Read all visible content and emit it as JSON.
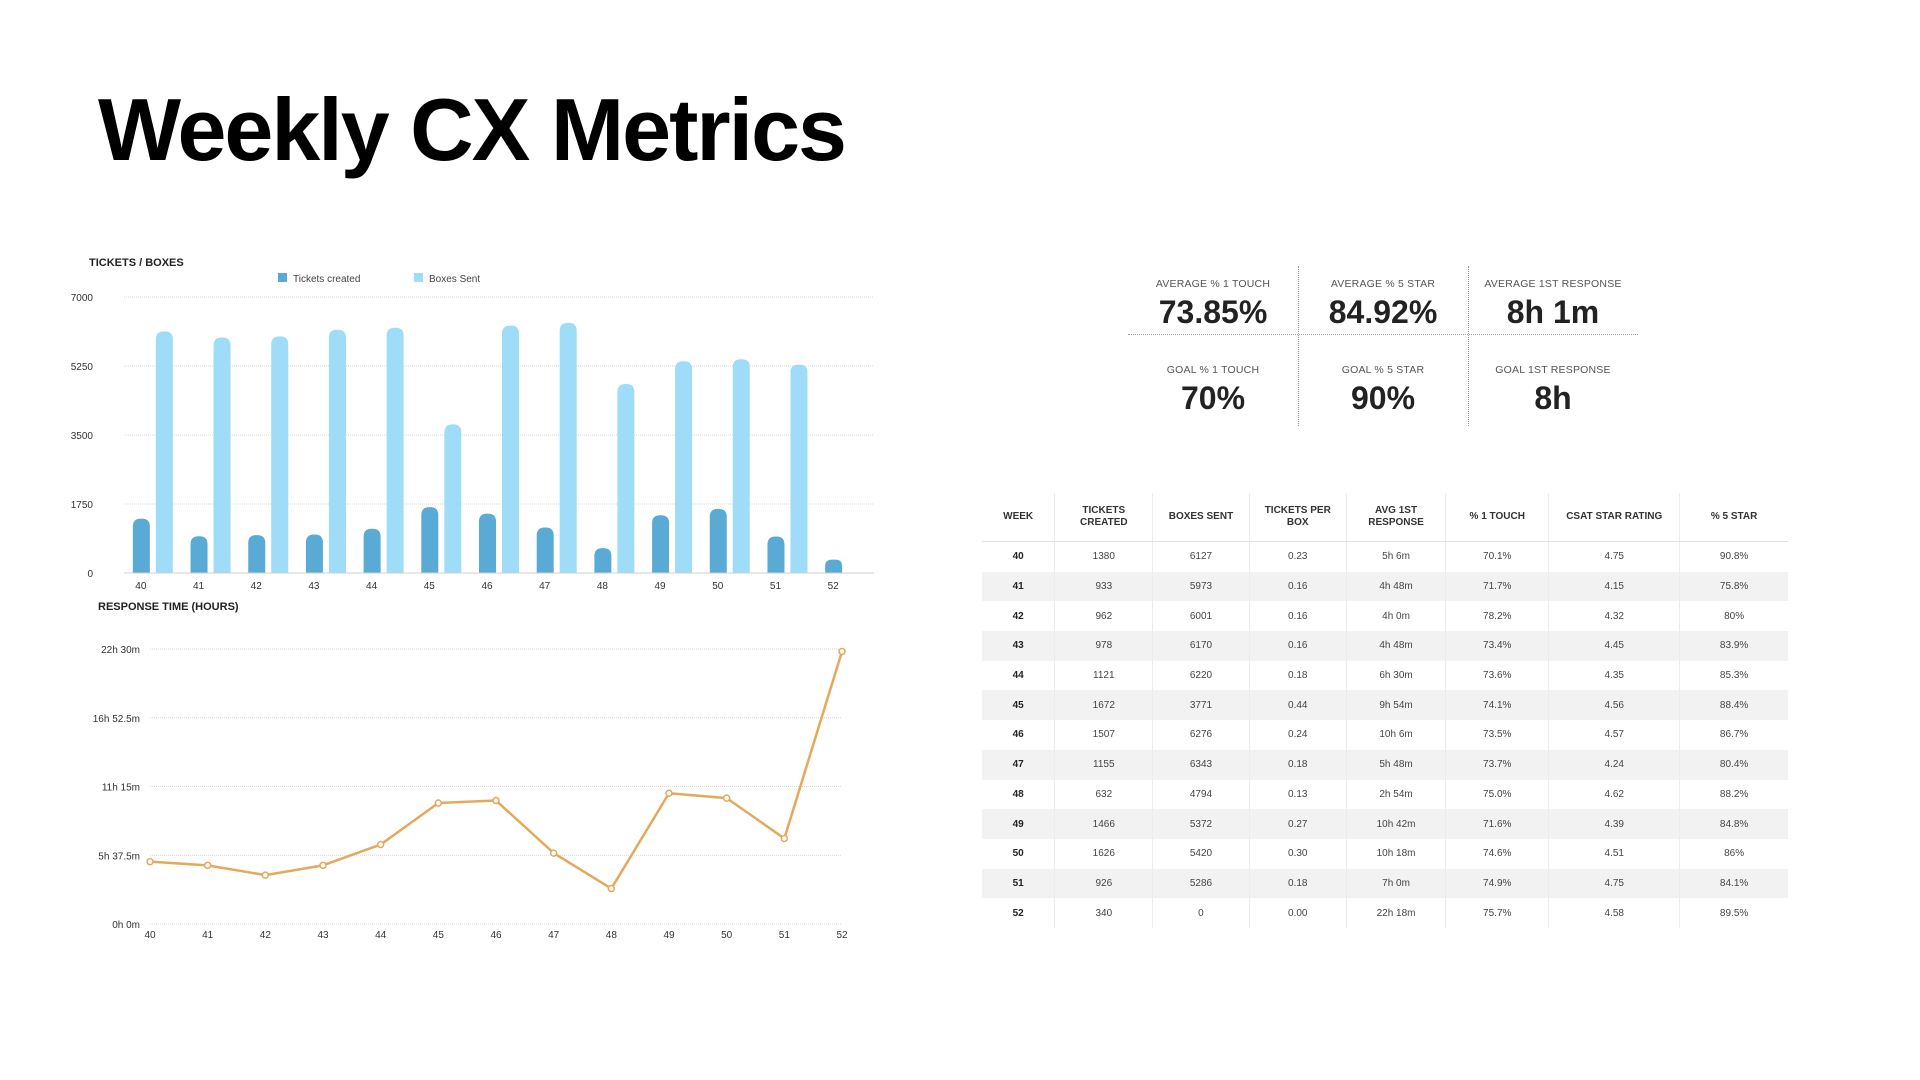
{
  "title": "Weekly CX Metrics",
  "colors": {
    "tickets": "#5aaad6",
    "boxes": "#9fdcf7",
    "line": "#e3a95c",
    "grid": "#d9d9d9",
    "axis_text": "#333333"
  },
  "chart_data": [
    {
      "type": "bar",
      "title": "TICKETS / BOXES",
      "categories": [
        "40",
        "41",
        "42",
        "43",
        "44",
        "45",
        "46",
        "47",
        "48",
        "49",
        "50",
        "51",
        "52"
      ],
      "series": [
        {
          "name": "Tickets created",
          "values": [
            1380,
            933,
            962,
            978,
            1121,
            1672,
            1507,
            1155,
            632,
            1466,
            1626,
            926,
            340
          ]
        },
        {
          "name": "Boxes Sent",
          "values": [
            6127,
            5973,
            6001,
            6170,
            6220,
            3771,
            6276,
            6343,
            4794,
            5372,
            5420,
            5286,
            0
          ]
        }
      ],
      "yticks": [
        "0",
        "1750",
        "3500",
        "5250",
        "7000"
      ],
      "ylim": [
        0,
        7000
      ],
      "legend": "top"
    },
    {
      "type": "line",
      "title": "RESPONSE TIME (HOURS)",
      "categories": [
        "40",
        "41",
        "42",
        "43",
        "44",
        "45",
        "46",
        "47",
        "48",
        "49",
        "50",
        "51",
        "52"
      ],
      "series": [
        {
          "name": "Avg 1st response (hours)",
          "values": [
            5.1,
            4.8,
            4.0,
            4.8,
            6.5,
            9.9,
            10.1,
            5.8,
            2.9,
            10.7,
            10.3,
            7.0,
            22.3
          ]
        }
      ],
      "yticks": [
        "0h 0m",
        "5h 37.5m",
        "11h 15m",
        "16h 52.5m",
        "22h 30m"
      ],
      "ylim": [
        0,
        22.5
      ]
    }
  ],
  "kpis": [
    {
      "label": "AVERAGE % 1 TOUCH",
      "value": "73.85%"
    },
    {
      "label": "AVERAGE % 5 STAR",
      "value": "84.92%"
    },
    {
      "label": "AVERAGE 1ST RESPONSE",
      "value": "8h 1m"
    },
    {
      "label": "GOAL % 1 TOUCH",
      "value": "70%"
    },
    {
      "label": "GOAL % 5 STAR",
      "value": "90%"
    },
    {
      "label": "GOAL 1ST RESPONSE",
      "value": "8h"
    }
  ],
  "table": {
    "headers": [
      "WEEK",
      "TICKETS CREATED",
      "BOXES SENT",
      "TICKETS PER BOX",
      "AVG 1ST RESPONSE",
      "% 1 TOUCH",
      "CSAT STAR RATING",
      "% 5 STAR"
    ],
    "rows": [
      [
        "40",
        "1380",
        "6127",
        "0.23",
        "5h 6m",
        "70.1%",
        "4.75",
        "90.8%"
      ],
      [
        "41",
        "933",
        "5973",
        "0.16",
        "4h 48m",
        "71.7%",
        "4.15",
        "75.8%"
      ],
      [
        "42",
        "962",
        "6001",
        "0.16",
        "4h 0m",
        "78.2%",
        "4.32",
        "80%"
      ],
      [
        "43",
        "978",
        "6170",
        "0.16",
        "4h 48m",
        "73.4%",
        "4.45",
        "83.9%"
      ],
      [
        "44",
        "1121",
        "6220",
        "0.18",
        "6h 30m",
        "73.6%",
        "4.35",
        "85.3%"
      ],
      [
        "45",
        "1672",
        "3771",
        "0.44",
        "9h 54m",
        "74.1%",
        "4.56",
        "88.4%"
      ],
      [
        "46",
        "1507",
        "6276",
        "0.24",
        "10h 6m",
        "73.5%",
        "4.57",
        "86.7%"
      ],
      [
        "47",
        "1155",
        "6343",
        "0.18",
        "5h 48m",
        "73.7%",
        "4.24",
        "80.4%"
      ],
      [
        "48",
        "632",
        "4794",
        "0.13",
        "2h 54m",
        "75.0%",
        "4.62",
        "88.2%"
      ],
      [
        "49",
        "1466",
        "5372",
        "0.27",
        "10h 42m",
        "71.6%",
        "4.39",
        "84.8%"
      ],
      [
        "50",
        "1626",
        "5420",
        "0.30",
        "10h 18m",
        "74.6%",
        "4.51",
        "86%"
      ],
      [
        "51",
        "926",
        "5286",
        "0.18",
        "7h 0m",
        "74.9%",
        "4.75",
        "84.1%"
      ],
      [
        "52",
        "340",
        "0",
        "0.00",
        "22h 18m",
        "75.7%",
        "4.58",
        "89.5%"
      ]
    ]
  }
}
